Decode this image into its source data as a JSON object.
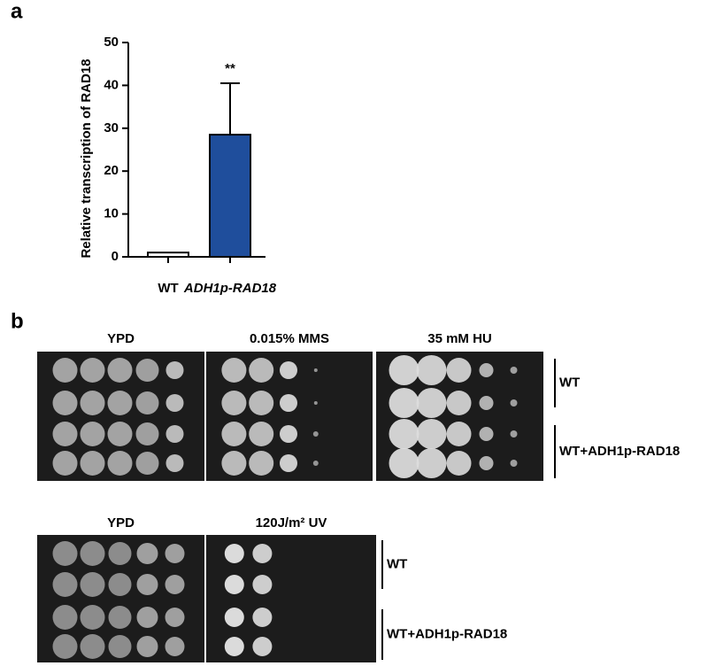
{
  "panel_labels": [
    "a",
    "b"
  ],
  "chart_data": {
    "type": "bar",
    "ylabel": "Relative transcription of RAD18",
    "categories": [
      "WT",
      "ADH1p-RAD18"
    ],
    "values": [
      1,
      28.5
    ],
    "errors": [
      null,
      12
    ],
    "colors": [
      "#ffffff",
      "#1f4e9c"
    ],
    "ylim": [
      0,
      50
    ],
    "yticks": [
      0,
      10,
      20,
      30,
      40,
      50
    ],
    "annotations": [
      {
        "text": "**",
        "category": 1
      }
    ]
  },
  "spot_assays": [
    {
      "conditions": [
        "YPD",
        "0.015% MMS",
        "35 mM HU"
      ],
      "strains": [
        "WT",
        "WT+ADH1p-RAD18"
      ]
    },
    {
      "conditions": [
        "YPD",
        "120J/m² UV"
      ],
      "strains": [
        "WT",
        "WT+ADH1p-RAD18"
      ]
    }
  ]
}
